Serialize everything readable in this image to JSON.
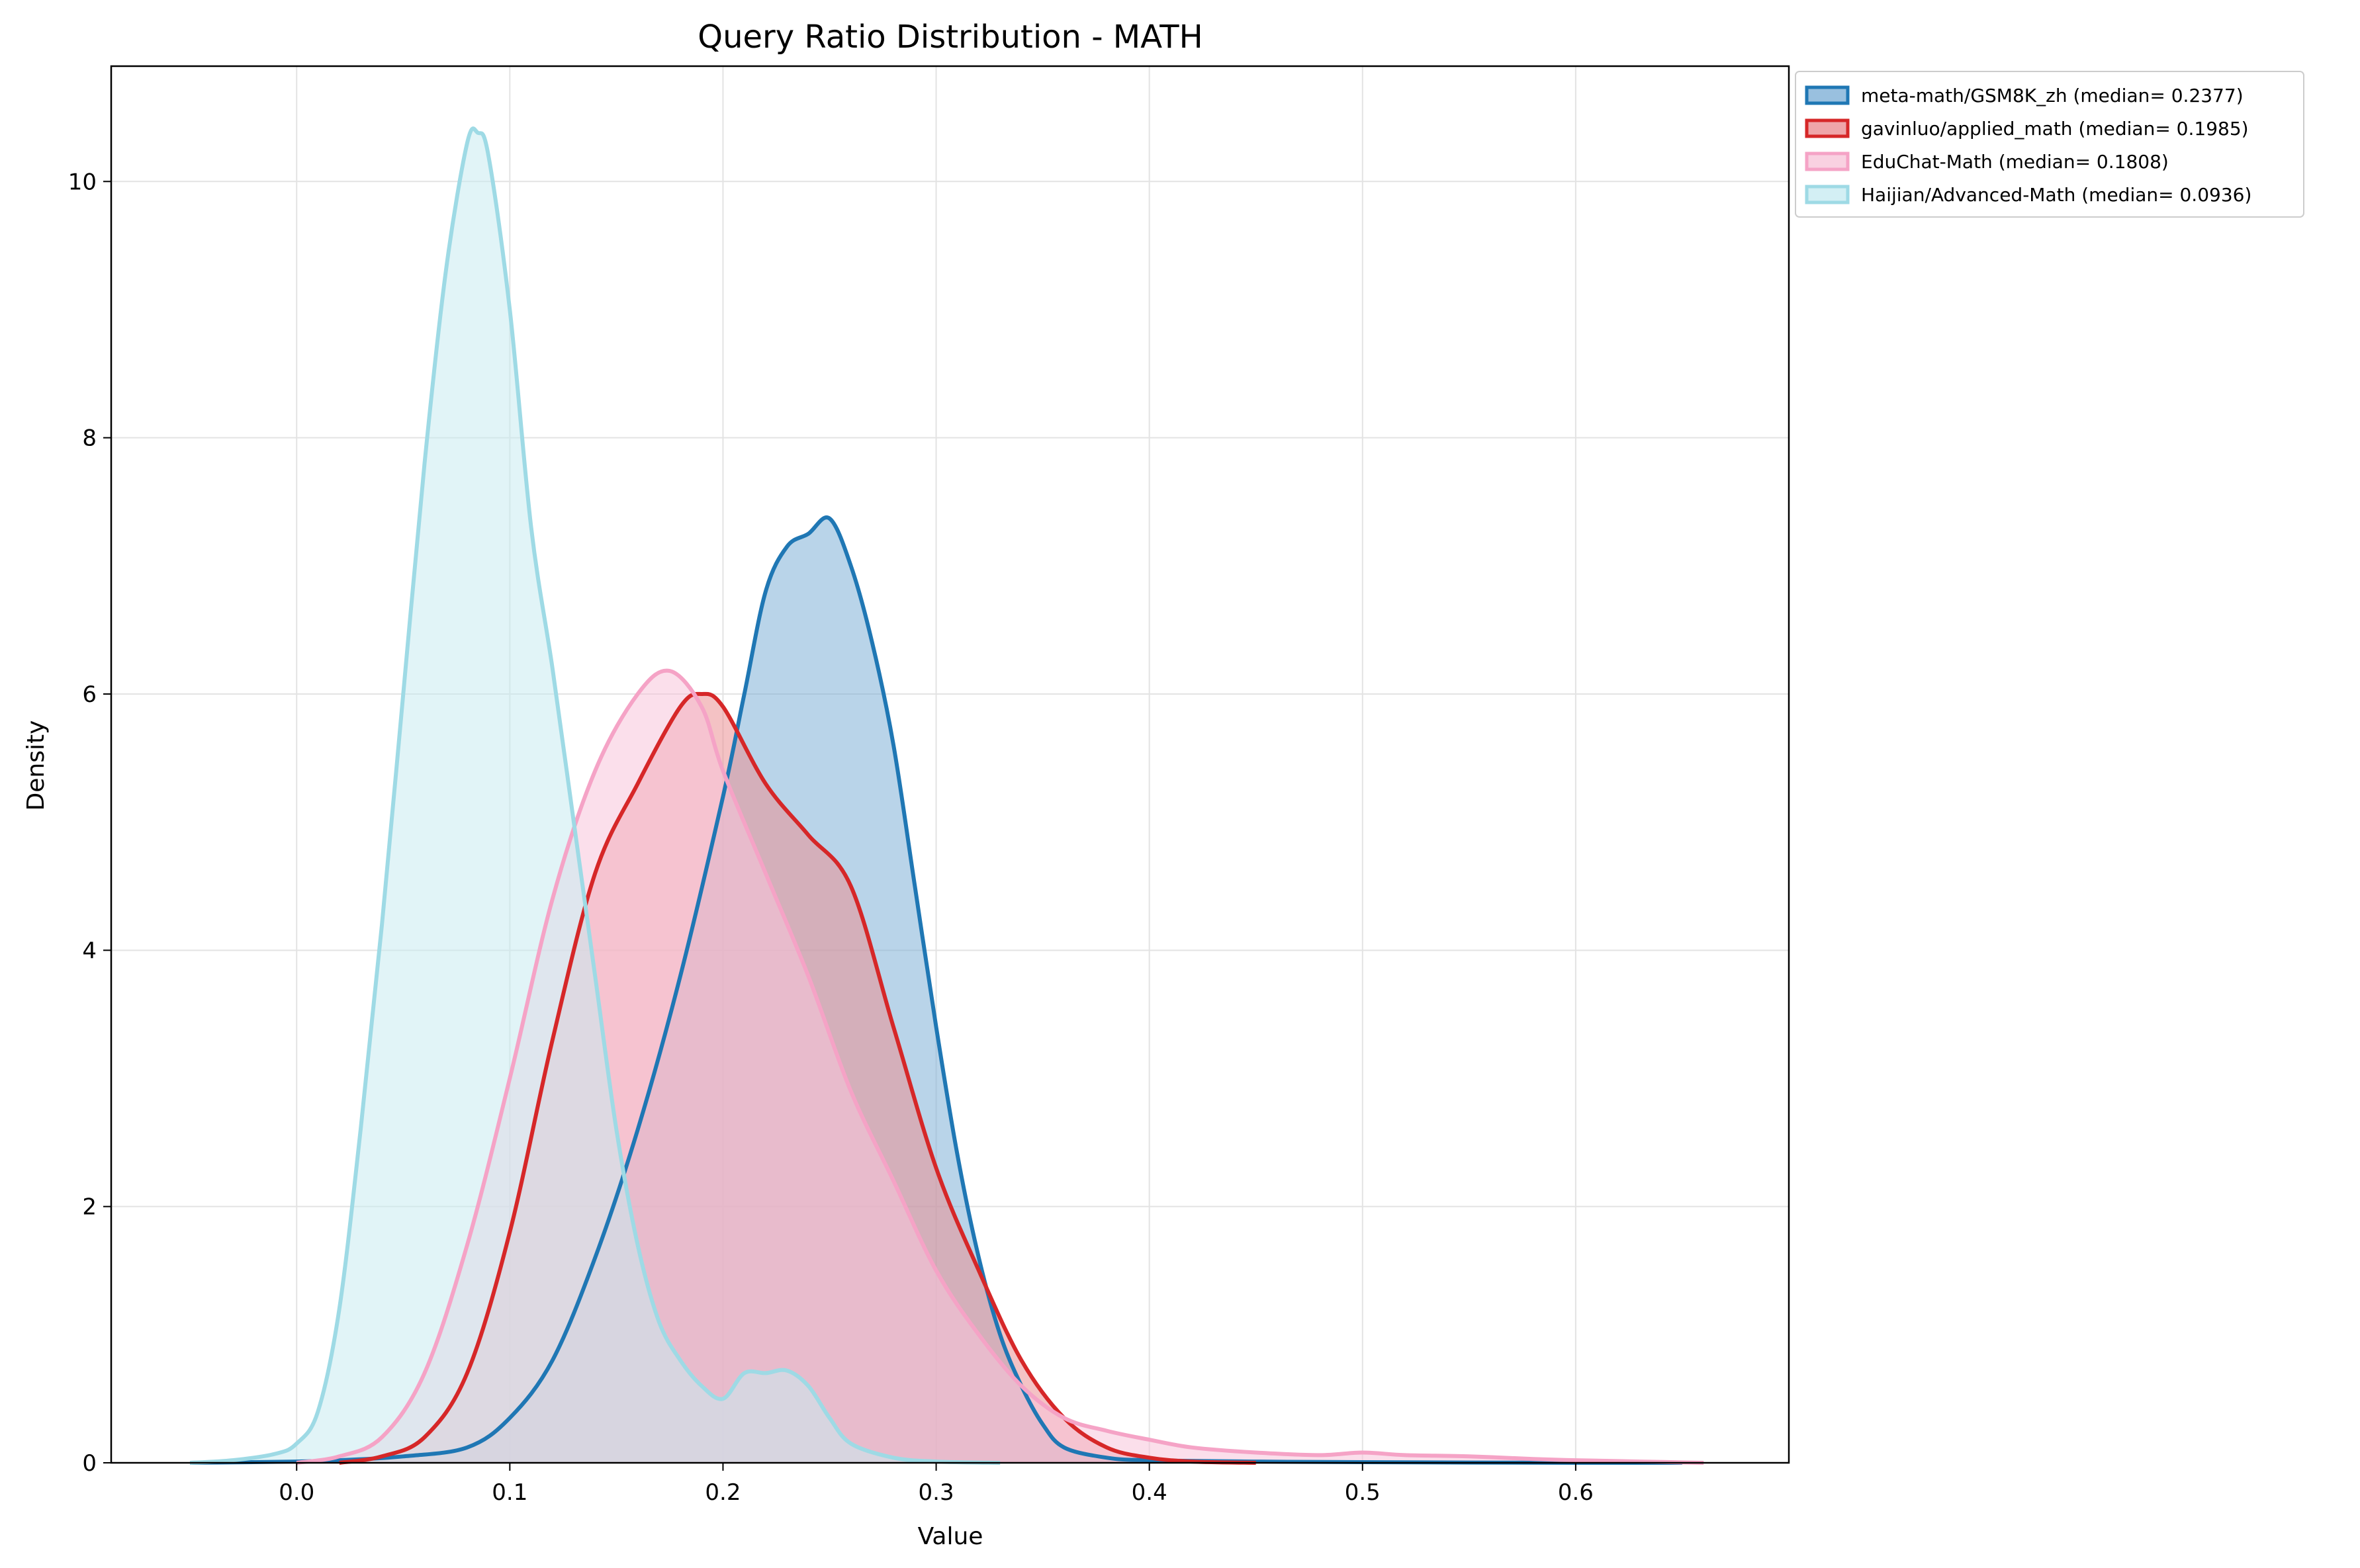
{
  "chart_data": {
    "type": "area",
    "title": "Query Ratio Distribution - MATH",
    "xlabel": "Value",
    "ylabel": "Density",
    "xlim": [
      -0.087,
      0.7
    ],
    "ylim": [
      0,
      10.9
    ],
    "xticks": [
      0.0,
      0.1,
      0.2,
      0.3,
      0.4,
      0.5,
      0.6
    ],
    "xtick_labels": [
      "0.0",
      "0.1",
      "0.2",
      "0.3",
      "0.4",
      "0.5",
      "0.6"
    ],
    "yticks": [
      0,
      2,
      4,
      6,
      8,
      10
    ],
    "ytick_labels": [
      "0",
      "2",
      "4",
      "6",
      "8",
      "10"
    ],
    "grid": true,
    "legend_position": "outside-top-right",
    "series": [
      {
        "name": "meta-math/GSM8K_zh (median= 0.2377)",
        "color": "#1f77b4",
        "fill_color": "#7fb0d7",
        "points": [
          [
            -0.05,
            0
          ],
          [
            0.0,
            0.01
          ],
          [
            0.02,
            0.02
          ],
          [
            0.05,
            0.05
          ],
          [
            0.08,
            0.12
          ],
          [
            0.1,
            0.35
          ],
          [
            0.12,
            0.8
          ],
          [
            0.14,
            1.6
          ],
          [
            0.16,
            2.6
          ],
          [
            0.18,
            3.8
          ],
          [
            0.2,
            5.2
          ],
          [
            0.21,
            6.0
          ],
          [
            0.22,
            6.8
          ],
          [
            0.23,
            7.15
          ],
          [
            0.24,
            7.25
          ],
          [
            0.25,
            7.37
          ],
          [
            0.26,
            7.0
          ],
          [
            0.27,
            6.4
          ],
          [
            0.28,
            5.6
          ],
          [
            0.29,
            4.5
          ],
          [
            0.3,
            3.4
          ],
          [
            0.31,
            2.4
          ],
          [
            0.32,
            1.6
          ],
          [
            0.33,
            1.0
          ],
          [
            0.34,
            0.6
          ],
          [
            0.35,
            0.3
          ],
          [
            0.36,
            0.12
          ],
          [
            0.38,
            0.04
          ],
          [
            0.4,
            0.02
          ],
          [
            0.45,
            0.01
          ],
          [
            0.5,
            0.005
          ],
          [
            0.6,
            0
          ],
          [
            0.65,
            0
          ]
        ]
      },
      {
        "name": "gavinluo/applied_math (median= 0.1985)",
        "color": "#d62728",
        "fill_color": "#eb8f94",
        "points": [
          [
            0.02,
            0
          ],
          [
            0.04,
            0.05
          ],
          [
            0.06,
            0.2
          ],
          [
            0.08,
            0.7
          ],
          [
            0.1,
            1.8
          ],
          [
            0.12,
            3.3
          ],
          [
            0.14,
            4.6
          ],
          [
            0.16,
            5.3
          ],
          [
            0.18,
            5.9
          ],
          [
            0.19,
            6.0
          ],
          [
            0.2,
            5.9
          ],
          [
            0.22,
            5.3
          ],
          [
            0.24,
            4.9
          ],
          [
            0.26,
            4.5
          ],
          [
            0.28,
            3.4
          ],
          [
            0.3,
            2.3
          ],
          [
            0.32,
            1.5
          ],
          [
            0.34,
            0.8
          ],
          [
            0.36,
            0.35
          ],
          [
            0.38,
            0.12
          ],
          [
            0.4,
            0.04
          ],
          [
            0.42,
            0.01
          ],
          [
            0.45,
            0
          ]
        ]
      },
      {
        "name": "EduChat-Math (median= 0.1808)",
        "color": "#f5a3c6",
        "fill_color": "#f8c5da",
        "points": [
          [
            0.0,
            0
          ],
          [
            0.02,
            0.05
          ],
          [
            0.04,
            0.2
          ],
          [
            0.06,
            0.7
          ],
          [
            0.08,
            1.7
          ],
          [
            0.1,
            3.0
          ],
          [
            0.12,
            4.4
          ],
          [
            0.14,
            5.4
          ],
          [
            0.16,
            6.0
          ],
          [
            0.175,
            6.18
          ],
          [
            0.19,
            5.9
          ],
          [
            0.2,
            5.4
          ],
          [
            0.22,
            4.6
          ],
          [
            0.24,
            3.8
          ],
          [
            0.26,
            2.9
          ],
          [
            0.28,
            2.2
          ],
          [
            0.3,
            1.5
          ],
          [
            0.32,
            1.0
          ],
          [
            0.34,
            0.6
          ],
          [
            0.36,
            0.35
          ],
          [
            0.38,
            0.25
          ],
          [
            0.4,
            0.18
          ],
          [
            0.42,
            0.12
          ],
          [
            0.45,
            0.08
          ],
          [
            0.48,
            0.06
          ],
          [
            0.5,
            0.08
          ],
          [
            0.52,
            0.06
          ],
          [
            0.55,
            0.05
          ],
          [
            0.58,
            0.03
          ],
          [
            0.6,
            0.02
          ],
          [
            0.63,
            0.01
          ],
          [
            0.66,
            0
          ]
        ]
      },
      {
        "name": "Haijian/Advanced-Math (median= 0.0936)",
        "color": "#9edae5",
        "fill_color": "#c8ebf1",
        "points": [
          [
            -0.05,
            0
          ],
          [
            -0.03,
            0.02
          ],
          [
            -0.01,
            0.07
          ],
          [
            0.0,
            0.15
          ],
          [
            0.01,
            0.4
          ],
          [
            0.02,
            1.2
          ],
          [
            0.03,
            2.6
          ],
          [
            0.04,
            4.2
          ],
          [
            0.05,
            6.0
          ],
          [
            0.06,
            7.8
          ],
          [
            0.07,
            9.3
          ],
          [
            0.08,
            10.3
          ],
          [
            0.085,
            10.38
          ],
          [
            0.09,
            10.2
          ],
          [
            0.1,
            9.0
          ],
          [
            0.11,
            7.3
          ],
          [
            0.12,
            6.2
          ],
          [
            0.13,
            5.0
          ],
          [
            0.14,
            3.8
          ],
          [
            0.15,
            2.6
          ],
          [
            0.16,
            1.7
          ],
          [
            0.17,
            1.1
          ],
          [
            0.18,
            0.8
          ],
          [
            0.19,
            0.6
          ],
          [
            0.2,
            0.5
          ],
          [
            0.21,
            0.7
          ],
          [
            0.22,
            0.7
          ],
          [
            0.23,
            0.72
          ],
          [
            0.24,
            0.6
          ],
          [
            0.25,
            0.35
          ],
          [
            0.26,
            0.15
          ],
          [
            0.28,
            0.04
          ],
          [
            0.3,
            0.01
          ],
          [
            0.33,
            0
          ]
        ]
      }
    ]
  }
}
